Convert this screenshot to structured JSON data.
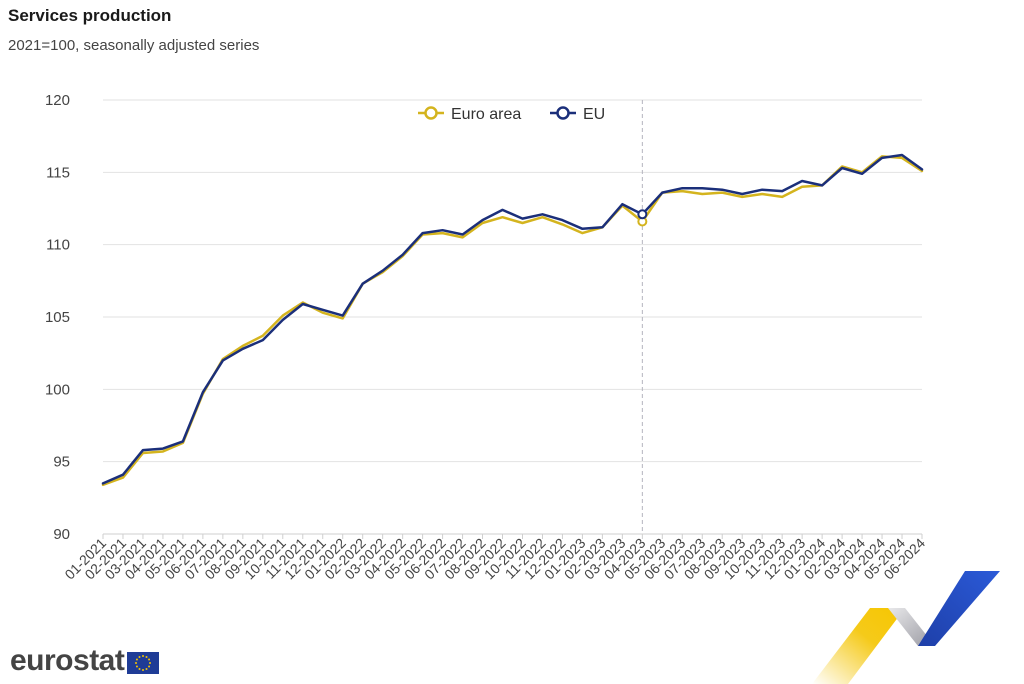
{
  "header": {
    "title": "Services production",
    "subtitle": "2021=100, seasonally adjusted series"
  },
  "brand": {
    "logo_text": "eurostat"
  },
  "colors": {
    "euro_area": "#D4B41E",
    "eu": "#1B2F7A",
    "grid": "#E2E2E2",
    "marker_line": "#B5B5BF"
  },
  "chart_data": {
    "type": "line",
    "title": "Services production",
    "subtitle": "2021=100, seasonally adjusted series",
    "xlabel": "",
    "ylabel": "",
    "ylim": [
      90,
      120
    ],
    "yticks": [
      90,
      95,
      100,
      105,
      110,
      115,
      120
    ],
    "grid": true,
    "legend_position": "top-center",
    "highlighted_category": "04-2023",
    "categories": [
      "01-2021",
      "02-2021",
      "03-2021",
      "04-2021",
      "05-2021",
      "06-2021",
      "07-2021",
      "08-2021",
      "09-2021",
      "10-2021",
      "11-2021",
      "12-2021",
      "01-2022",
      "02-2022",
      "03-2022",
      "04-2022",
      "05-2022",
      "06-2022",
      "07-2022",
      "08-2022",
      "09-2022",
      "10-2022",
      "11-2022",
      "12-2022",
      "01-2023",
      "02-2023",
      "03-2023",
      "04-2023",
      "05-2023",
      "06-2023",
      "07-2023",
      "08-2023",
      "09-2023",
      "10-2023",
      "11-2023",
      "12-2023",
      "01-2024",
      "02-2024",
      "03-2024",
      "04-2024",
      "05-2024",
      "06-2024"
    ],
    "series": [
      {
        "name": "Euro area",
        "values": [
          93.4,
          93.9,
          95.6,
          95.7,
          96.3,
          99.7,
          102.1,
          103.0,
          103.7,
          105.1,
          106.0,
          105.3,
          104.9,
          107.3,
          108.1,
          109.2,
          110.7,
          110.8,
          110.5,
          111.5,
          111.9,
          111.5,
          111.9,
          111.4,
          110.8,
          111.2,
          112.7,
          111.6,
          113.6,
          113.7,
          113.5,
          113.6,
          113.3,
          113.5,
          113.3,
          114.0,
          114.1,
          115.4,
          115.0,
          116.1,
          116.0,
          115.1
        ]
      },
      {
        "name": "EU",
        "values": [
          93.5,
          94.1,
          95.8,
          95.9,
          96.4,
          99.8,
          102.0,
          102.8,
          103.4,
          104.8,
          105.9,
          105.5,
          105.1,
          107.3,
          108.2,
          109.3,
          110.8,
          111.0,
          110.7,
          111.7,
          112.4,
          111.8,
          112.1,
          111.7,
          111.1,
          111.2,
          112.8,
          112.1,
          113.6,
          113.9,
          113.9,
          113.8,
          113.5,
          113.8,
          113.7,
          114.4,
          114.1,
          115.3,
          114.9,
          116.0,
          116.2,
          115.2
        ]
      }
    ]
  }
}
